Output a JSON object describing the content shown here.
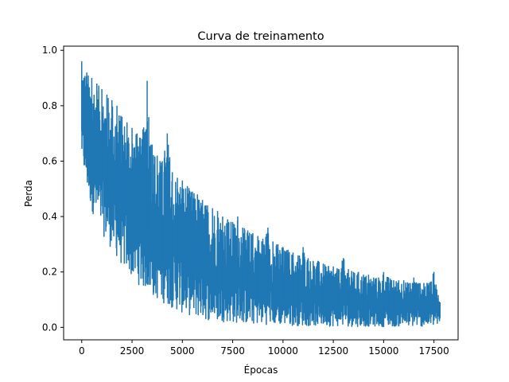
{
  "chart_data": {
    "type": "line",
    "title": "Curva de treinamento",
    "xlabel": "Épocas",
    "ylabel": "Perda",
    "xlim": [
      -900,
      18700
    ],
    "ylim": [
      -0.045,
      1.015
    ],
    "xticks": [
      0,
      2500,
      5000,
      7500,
      10000,
      12500,
      15000,
      17500
    ],
    "xtick_labels": [
      "0",
      "2500",
      "5000",
      "7500",
      "10000",
      "12500",
      "15000",
      "17500"
    ],
    "yticks": [
      0.0,
      0.2,
      0.4,
      0.6,
      0.8,
      1.0
    ],
    "ytick_labels": [
      "0.0",
      "0.2",
      "0.4",
      "0.6",
      "0.8",
      "1.0"
    ],
    "grid": false,
    "line_color": "#1f77b4",
    "series": [
      {
        "x": [
          0,
          250,
          500,
          750,
          1000,
          1250,
          1500,
          1750,
          2000,
          2250,
          2500,
          2750,
          3000,
          3250,
          3500,
          3750,
          4000,
          4250,
          4500,
          4750,
          5000,
          5250,
          5500,
          5750,
          6000,
          6250,
          6500,
          6750,
          7000,
          7250,
          7500,
          7750,
          8000,
          8250,
          8500,
          8750,
          9000,
          9250,
          9500,
          9750,
          10000,
          10250,
          10500,
          10750,
          11000,
          11250,
          11500,
          11750,
          12000,
          12250,
          12500,
          12750,
          13000,
          13250,
          13500,
          13750,
          14000,
          14250,
          14500,
          14750,
          15000,
          15250,
          15500,
          15750,
          16000,
          16250,
          16500,
          16750,
          17000,
          17250,
          17500,
          17800
        ],
        "y_max": [
          0.96,
          0.92,
          0.9,
          0.88,
          0.86,
          0.84,
          0.82,
          0.8,
          0.76,
          0.74,
          0.72,
          0.7,
          0.68,
          0.89,
          0.66,
          0.62,
          0.6,
          0.7,
          0.56,
          0.54,
          0.53,
          0.51,
          0.49,
          0.48,
          0.46,
          0.44,
          0.43,
          0.42,
          0.4,
          0.39,
          0.38,
          0.4,
          0.36,
          0.35,
          0.34,
          0.33,
          0.32,
          0.36,
          0.31,
          0.3,
          0.29,
          0.28,
          0.27,
          0.26,
          0.29,
          0.25,
          0.24,
          0.24,
          0.23,
          0.22,
          0.22,
          0.21,
          0.25,
          0.21,
          0.2,
          0.2,
          0.19,
          0.19,
          0.18,
          0.18,
          0.2,
          0.18,
          0.17,
          0.17,
          0.17,
          0.16,
          0.18,
          0.16,
          0.16,
          0.16,
          0.2,
          0.09
        ],
        "y_min": [
          0.6,
          0.5,
          0.42,
          0.38,
          0.34,
          0.31,
          0.28,
          0.25,
          0.22,
          0.2,
          0.18,
          0.16,
          0.14,
          0.13,
          0.11,
          0.1,
          0.09,
          0.08,
          0.07,
          0.06,
          0.05,
          0.045,
          0.04,
          0.035,
          0.03,
          0.025,
          0.025,
          0.02,
          0.02,
          0.02,
          0.015,
          0.015,
          0.015,
          0.01,
          0.01,
          0.01,
          0.01,
          0.01,
          0.008,
          0.008,
          0.008,
          0.006,
          0.006,
          0.006,
          0.005,
          0.005,
          0.005,
          0.005,
          0.004,
          0.004,
          0.004,
          0.004,
          0.004,
          0.003,
          0.003,
          0.003,
          0.003,
          0.003,
          0.003,
          0.003,
          0.003,
          0.003,
          0.003,
          0.003,
          0.003,
          0.003,
          0.003,
          0.003,
          0.003,
          0.003,
          0.003,
          0.01
        ]
      }
    ]
  }
}
